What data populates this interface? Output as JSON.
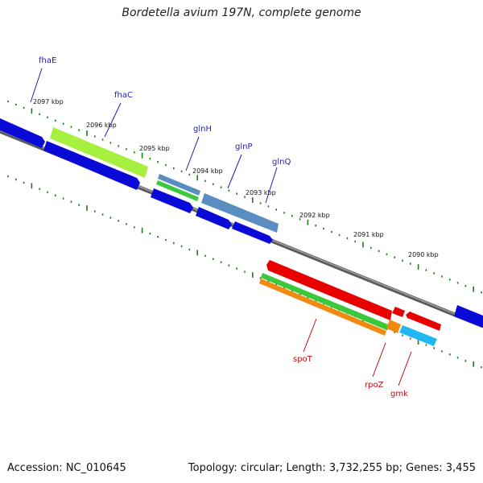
{
  "title": "Bordetella avium 197N, complete genome",
  "footer": {
    "accession": "Accession: NC_010645",
    "topology": "Topology: circular; Length: 3,732,255 bp; Genes: 3,455"
  },
  "colors": {
    "backbone": "#7a7a7a",
    "tick": "#1f7a1f",
    "forward_gene": "#0a0ad8",
    "reverse_gene": "#e80000",
    "forward_label": "#1f1fb0",
    "reverse_label": "#c01010"
  },
  "scale_labels": [
    "2097 kbp",
    "2096 kbp",
    "2095 kbp",
    "2094 kbp",
    "2093 kbp",
    "2092 kbp",
    "2091 kbp",
    "2090 kbp"
  ],
  "forward_genes": [
    {
      "name": "fhaE",
      "color": "#1f1fb0"
    },
    {
      "name": "fhaC",
      "color": "#1f1fb0"
    },
    {
      "name": "glnH",
      "color": "#1f1fb0"
    },
    {
      "name": "glnP",
      "color": "#1f1fb0"
    },
    {
      "name": "glnQ",
      "color": "#1f1fb0"
    }
  ],
  "reverse_genes": [
    {
      "name": "spoT",
      "color": "#c01010"
    },
    {
      "name": "rpoZ",
      "color": "#c01010"
    },
    {
      "name": "gmk",
      "color": "#c01010"
    }
  ],
  "feature_colors": {
    "fhaC_cog": "#a8f040",
    "glnH_cog": "#5a8ec0",
    "glnH_cog2": "#3cc83c",
    "glnP_cog": "#5a8ec0",
    "spoT_cog": "#3cc83c",
    "spoT_cog2": "#f08a10",
    "rpoZ_cog": "#f08a10",
    "gmk_cog": "#20b8f0"
  }
}
